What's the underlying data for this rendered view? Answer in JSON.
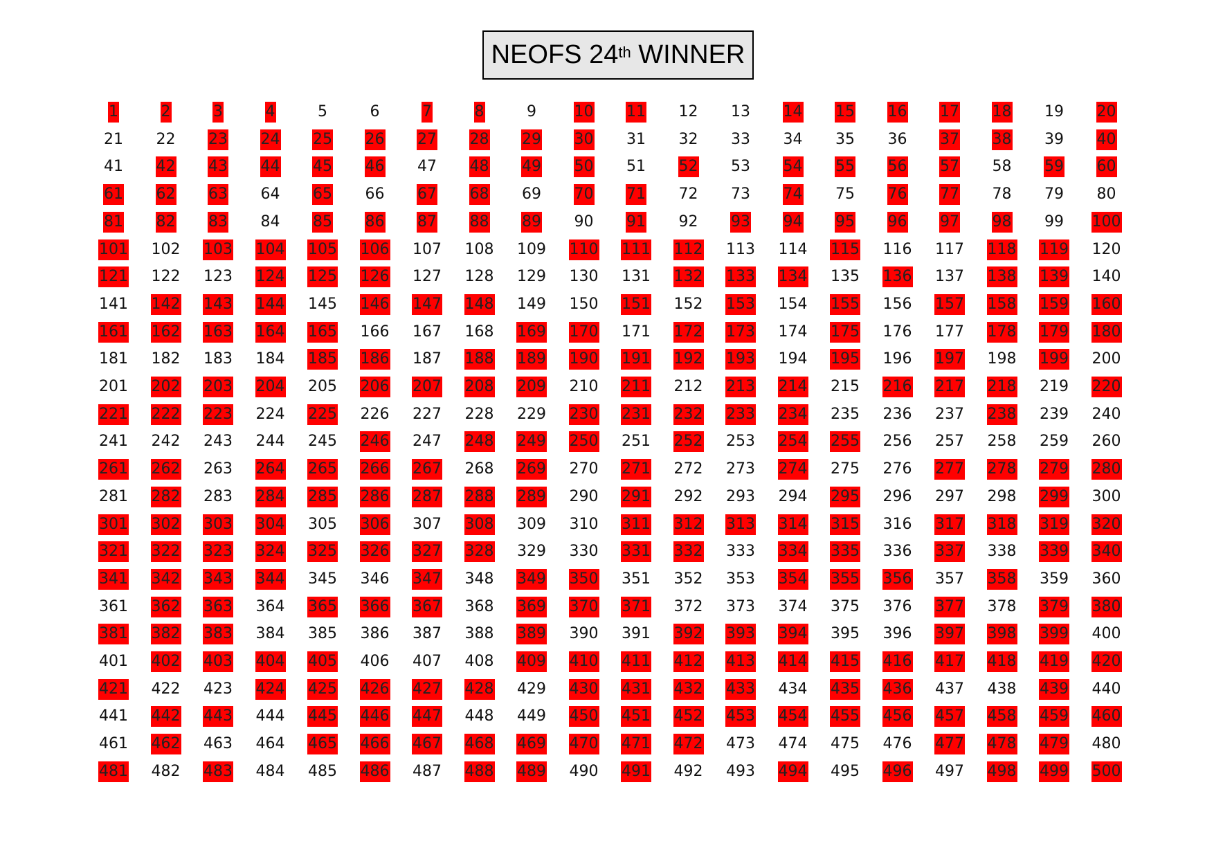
{
  "title": {
    "main": "NEOFS 24",
    "superscript": "th",
    "suffix": " WINNER"
  },
  "colors": {
    "highlight": "#ff0000",
    "title_background": "#e7e7e7"
  },
  "grid": {
    "columns": 20,
    "rows": 25,
    "numbers_start": 1,
    "numbers_end": 500,
    "highlighted": [
      1,
      2,
      3,
      4,
      7,
      8,
      10,
      11,
      14,
      15,
      16,
      17,
      18,
      20,
      23,
      24,
      25,
      26,
      27,
      28,
      29,
      30,
      37,
      38,
      40,
      42,
      43,
      44,
      45,
      46,
      48,
      49,
      50,
      52,
      54,
      55,
      56,
      57,
      59,
      60,
      61,
      62,
      63,
      65,
      67,
      68,
      70,
      71,
      74,
      76,
      77,
      81,
      82,
      83,
      85,
      86,
      87,
      88,
      89,
      91,
      93,
      94,
      95,
      96,
      97,
      98,
      100,
      101,
      103,
      104,
      105,
      106,
      110,
      111,
      112,
      115,
      118,
      119,
      121,
      124,
      125,
      126,
      132,
      133,
      134,
      136,
      138,
      139,
      142,
      143,
      144,
      146,
      147,
      148,
      151,
      153,
      155,
      157,
      158,
      159,
      160,
      161,
      162,
      163,
      164,
      165,
      169,
      170,
      172,
      173,
      175,
      178,
      179,
      180,
      185,
      186,
      188,
      189,
      190,
      191,
      192,
      193,
      195,
      197,
      199,
      202,
      203,
      204,
      206,
      207,
      208,
      209,
      211,
      213,
      214,
      216,
      217,
      218,
      220,
      221,
      222,
      223,
      225,
      230,
      231,
      232,
      233,
      234,
      238,
      246,
      248,
      249,
      250,
      252,
      254,
      255,
      261,
      262,
      264,
      265,
      266,
      267,
      269,
      271,
      274,
      277,
      278,
      279,
      280,
      282,
      284,
      285,
      286,
      287,
      288,
      289,
      291,
      295,
      299,
      301,
      302,
      303,
      304,
      306,
      308,
      311,
      312,
      313,
      314,
      315,
      317,
      318,
      319,
      320,
      321,
      322,
      323,
      324,
      325,
      326,
      327,
      328,
      331,
      332,
      334,
      335,
      337,
      339,
      340,
      341,
      342,
      343,
      344,
      347,
      349,
      350,
      354,
      355,
      356,
      358,
      362,
      363,
      365,
      366,
      367,
      369,
      370,
      371,
      377,
      379,
      380,
      381,
      382,
      383,
      389,
      392,
      393,
      394,
      397,
      398,
      399,
      402,
      403,
      404,
      405,
      409,
      410,
      411,
      412,
      413,
      414,
      415,
      416,
      417,
      418,
      419,
      420,
      421,
      424,
      425,
      426,
      427,
      428,
      430,
      431,
      432,
      433,
      435,
      436,
      439,
      442,
      443,
      445,
      446,
      447,
      450,
      451,
      452,
      453,
      454,
      455,
      456,
      457,
      458,
      459,
      460,
      462,
      465,
      466,
      467,
      468,
      469,
      470,
      471,
      472,
      477,
      478,
      479,
      481,
      483,
      486,
      488,
      489,
      491,
      494,
      496,
      498,
      499,
      500
    ]
  }
}
